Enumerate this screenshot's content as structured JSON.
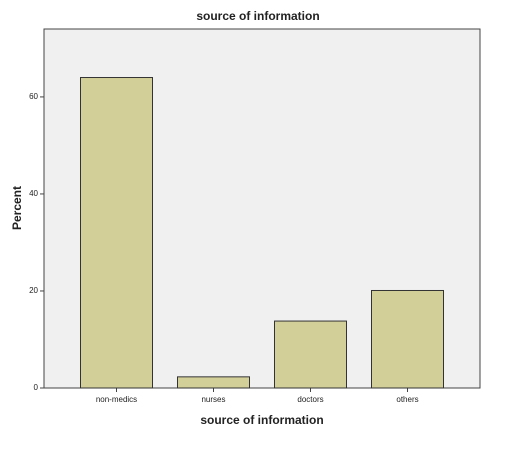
{
  "chart_data": {
    "type": "bar",
    "title": "source of information",
    "x_label": "source of information",
    "y_label": "Percent",
    "categories": [
      "non-medics",
      "nurses",
      "doctors",
      "others"
    ],
    "values": [
      64,
      2.3,
      13.8,
      20.1
    ],
    "color": "#d3cf98",
    "ylim": [
      0,
      74
    ],
    "yticks": [
      0,
      20,
      40,
      60
    ],
    "grid": false
  }
}
